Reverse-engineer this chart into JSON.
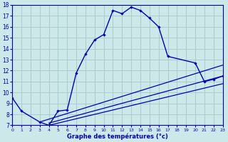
{
  "xlabel": "Graphe des températures (°c)",
  "bg_color": "#cce8e8",
  "grid_color": "#aacccc",
  "line_color": "#0000bb",
  "ylim": [
    7,
    18
  ],
  "xlim": [
    0,
    23
  ],
  "yticks": [
    7,
    8,
    9,
    10,
    11,
    12,
    13,
    14,
    15,
    16,
    17,
    18
  ],
  "xticks": [
    0,
    1,
    2,
    3,
    4,
    5,
    6,
    7,
    8,
    9,
    10,
    11,
    12,
    13,
    14,
    15,
    16,
    17,
    18,
    19,
    20,
    21,
    22,
    23
  ],
  "main_x": [
    0,
    1,
    3,
    4,
    5,
    6,
    7,
    8,
    9,
    10,
    11,
    12,
    13,
    14,
    15,
    16,
    17,
    20,
    21,
    22,
    23
  ],
  "main_y": [
    9.5,
    8.3,
    7.3,
    7.0,
    8.3,
    8.4,
    11.8,
    13.5,
    14.8,
    15.3,
    17.5,
    17.2,
    17.8,
    17.5,
    16.8,
    16.0,
    13.3,
    12.7,
    11.0,
    11.2,
    11.5
  ],
  "line1_x": [
    3,
    23
  ],
  "line1_y": [
    7.3,
    12.5
  ],
  "line2_x": [
    4,
    23
  ],
  "line2_y": [
    7.2,
    11.5
  ],
  "line3_x": [
    4,
    23
  ],
  "line3_y": [
    7.0,
    10.8
  ]
}
